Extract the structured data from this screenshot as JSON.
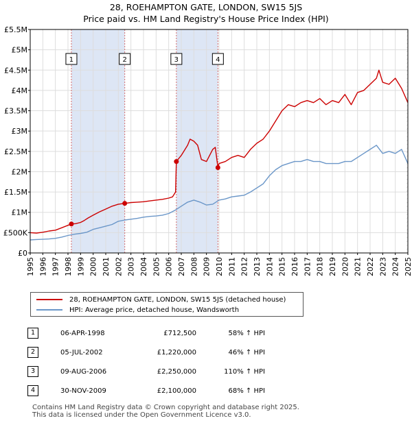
{
  "title_line1": "28, ROEHAMPTON GATE, LONDON, SW15 5JS",
  "title_line2": "Price paid vs. HM Land Registry's House Price Index (HPI)",
  "colors": {
    "property": "#cc0000",
    "hpi": "#6a96c8",
    "band": "#dde6f5"
  },
  "chart_data": {
    "type": "line",
    "title": "28, ROEHAMPTON GATE, LONDON, SW15 5JS",
    "subtitle": "Price paid vs. HM Land Registry's House Price Index (HPI)",
    "xlim": [
      1995,
      2025
    ],
    "ylim": [
      0,
      5500000
    ],
    "x_ticks": [
      1995,
      1996,
      1997,
      1998,
      1999,
      2000,
      2001,
      2002,
      2003,
      2004,
      2005,
      2006,
      2007,
      2008,
      2009,
      2010,
      2011,
      2012,
      2013,
      2014,
      2015,
      2016,
      2017,
      2018,
      2019,
      2020,
      2021,
      2022,
      2023,
      2024,
      2025
    ],
    "y_ticks": [
      {
        "value": 0,
        "label": "£0"
      },
      {
        "value": 500000,
        "label": "£500K"
      },
      {
        "value": 1000000,
        "label": "£1M"
      },
      {
        "value": 1500000,
        "label": "£1.5M"
      },
      {
        "value": 2000000,
        "label": "£2M"
      },
      {
        "value": 2500000,
        "label": "£2.5M"
      },
      {
        "value": 3000000,
        "label": "£3M"
      },
      {
        "value": 3500000,
        "label": "£3.5M"
      },
      {
        "value": 4000000,
        "label": "£4M"
      },
      {
        "value": 4500000,
        "label": "£4.5M"
      },
      {
        "value": 5000000,
        "label": "£5M"
      },
      {
        "value": 5500000,
        "label": "£5.5M"
      }
    ],
    "grid": true,
    "series": [
      {
        "name": "28, ROEHAMPTON GATE, LONDON, SW15 5JS (detached house)",
        "color": "#cc0000",
        "x": [
          1995,
          1995.5,
          1996,
          1996.5,
          1997,
          1997.5,
          1998,
          1998.27,
          1998.6,
          1999,
          1999.3,
          1999.6,
          2000,
          2000.5,
          2001,
          2001.5,
          2002,
          2002.51,
          2003,
          2003.5,
          2004,
          2004.5,
          2005,
          2005.5,
          2006,
          2006.3,
          2006.55,
          2006.61,
          2007,
          2007.5,
          2007.7,
          2008,
          2008.3,
          2008.6,
          2009,
          2009.5,
          2009.7,
          2009.91,
          2010,
          2010.5,
          2011,
          2011.5,
          2012,
          2012.5,
          2013,
          2013.5,
          2014,
          2014.5,
          2015,
          2015.5,
          2016,
          2016.5,
          2017,
          2017.5,
          2018,
          2018.5,
          2019,
          2019.5,
          2020,
          2020.5,
          2021,
          2021.5,
          2022,
          2022.5,
          2022.7,
          2023,
          2023.5,
          2024,
          2024.5,
          2025
        ],
        "values": [
          500000,
          490000,
          510000,
          540000,
          560000,
          620000,
          680000,
          712500,
          720000,
          750000,
          800000,
          860000,
          930000,
          1010000,
          1080000,
          1150000,
          1200000,
          1220000,
          1240000,
          1250000,
          1260000,
          1280000,
          1300000,
          1320000,
          1350000,
          1380000,
          1500000,
          2250000,
          2400000,
          2650000,
          2800000,
          2750000,
          2650000,
          2300000,
          2250000,
          2550000,
          2600000,
          2100000,
          2200000,
          2250000,
          2350000,
          2400000,
          2350000,
          2550000,
          2700000,
          2800000,
          3000000,
          3250000,
          3500000,
          3650000,
          3600000,
          3700000,
          3750000,
          3700000,
          3800000,
          3650000,
          3750000,
          3700000,
          3900000,
          3650000,
          3950000,
          4000000,
          4150000,
          4300000,
          4500000,
          4200000,
          4150000,
          4300000,
          4050000,
          3700000
        ]
      },
      {
        "name": "HPI: Average price, detached house, Wandsworth",
        "color": "#6a96c8",
        "x": [
          1995,
          1995.5,
          1996,
          1996.5,
          1997,
          1997.5,
          1998,
          1998.5,
          1999,
          1999.5,
          2000,
          2000.5,
          2001,
          2001.5,
          2002,
          2002.5,
          2003,
          2003.5,
          2004,
          2004.5,
          2005,
          2005.5,
          2006,
          2006.5,
          2007,
          2007.5,
          2008,
          2008.5,
          2009,
          2009.5,
          2010,
          2010.5,
          2011,
          2011.5,
          2012,
          2012.5,
          2013,
          2013.5,
          2014,
          2014.5,
          2015,
          2015.5,
          2016,
          2016.5,
          2017,
          2017.5,
          2018,
          2018.5,
          2019,
          2019.5,
          2020,
          2020.5,
          2021,
          2021.5,
          2022,
          2022.5,
          2023,
          2023.5,
          2024,
          2024.5,
          2025
        ],
        "values": [
          320000,
          330000,
          335000,
          345000,
          360000,
          390000,
          430000,
          460000,
          480000,
          510000,
          580000,
          620000,
          660000,
          700000,
          780000,
          810000,
          830000,
          850000,
          880000,
          900000,
          910000,
          930000,
          970000,
          1050000,
          1150000,
          1250000,
          1300000,
          1250000,
          1180000,
          1200000,
          1300000,
          1330000,
          1380000,
          1400000,
          1420000,
          1500000,
          1600000,
          1700000,
          1900000,
          2050000,
          2150000,
          2200000,
          2250000,
          2250000,
          2300000,
          2250000,
          2250000,
          2200000,
          2200000,
          2200000,
          2250000,
          2250000,
          2350000,
          2450000,
          2550000,
          2650000,
          2450000,
          2500000,
          2450000,
          2550000,
          2200000
        ]
      }
    ],
    "bands": [
      [
        1998.27,
        2002.51
      ],
      [
        2006.61,
        2009.91
      ]
    ],
    "sales": [
      {
        "label": "1",
        "x": 1998.27,
        "value": 712500
      },
      {
        "label": "2",
        "x": 2002.51,
        "value": 1220000
      },
      {
        "label": "3",
        "x": 2006.61,
        "value": 2250000
      },
      {
        "label": "4",
        "x": 2009.91,
        "value": 2100000
      }
    ]
  },
  "legend": {
    "property": "28, ROEHAMPTON GATE, LONDON, SW15 5JS (detached house)",
    "hpi": "HPI: Average price, detached house, Wandsworth"
  },
  "transactions": [
    {
      "num": "1",
      "date": "06-APR-1998",
      "price": "£712,500",
      "hpi": "58% ↑ HPI"
    },
    {
      "num": "2",
      "date": "05-JUL-2002",
      "price": "£1,220,000",
      "hpi": "46% ↑ HPI"
    },
    {
      "num": "3",
      "date": "09-AUG-2006",
      "price": "£2,250,000",
      "hpi": "110% ↑ HPI"
    },
    {
      "num": "4",
      "date": "30-NOV-2009",
      "price": "£2,100,000",
      "hpi": "68% ↑ HPI"
    }
  ],
  "footer": {
    "line1": "Contains HM Land Registry data © Crown copyright and database right 2025.",
    "line2": "This data is licensed under the Open Government Licence v3.0."
  }
}
